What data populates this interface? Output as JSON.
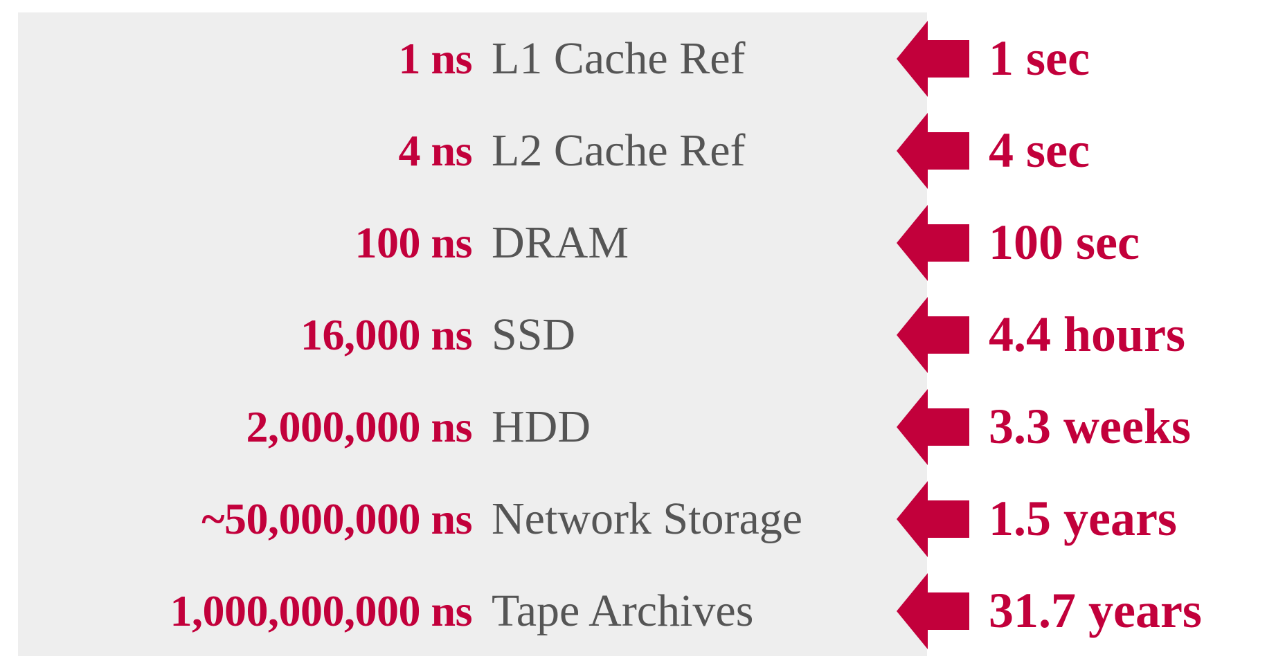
{
  "colors": {
    "accent": "#c2003b",
    "label": "#555555",
    "panel": "#eeeeee"
  },
  "icons": {
    "arrow": "left-arrow-icon"
  },
  "rows": [
    {
      "latency": "1 ns",
      "name": "L1 Cache Ref",
      "scaled": "1 sec"
    },
    {
      "latency": "4 ns",
      "name": "L2 Cache Ref",
      "scaled": "4 sec"
    },
    {
      "latency": "100 ns",
      "name": "DRAM",
      "scaled": "100 sec"
    },
    {
      "latency": "16,000 ns",
      "name": "SSD",
      "scaled": "4.4 hours"
    },
    {
      "latency": "2,000,000 ns",
      "name": "HDD",
      "scaled": "3.3 weeks"
    },
    {
      "latency": "~50,000,000 ns",
      "name": "Network Storage",
      "scaled": "1.5 years"
    },
    {
      "latency": "1,000,000,000 ns",
      "name": "Tape Archives",
      "scaled": "31.7 years"
    }
  ]
}
